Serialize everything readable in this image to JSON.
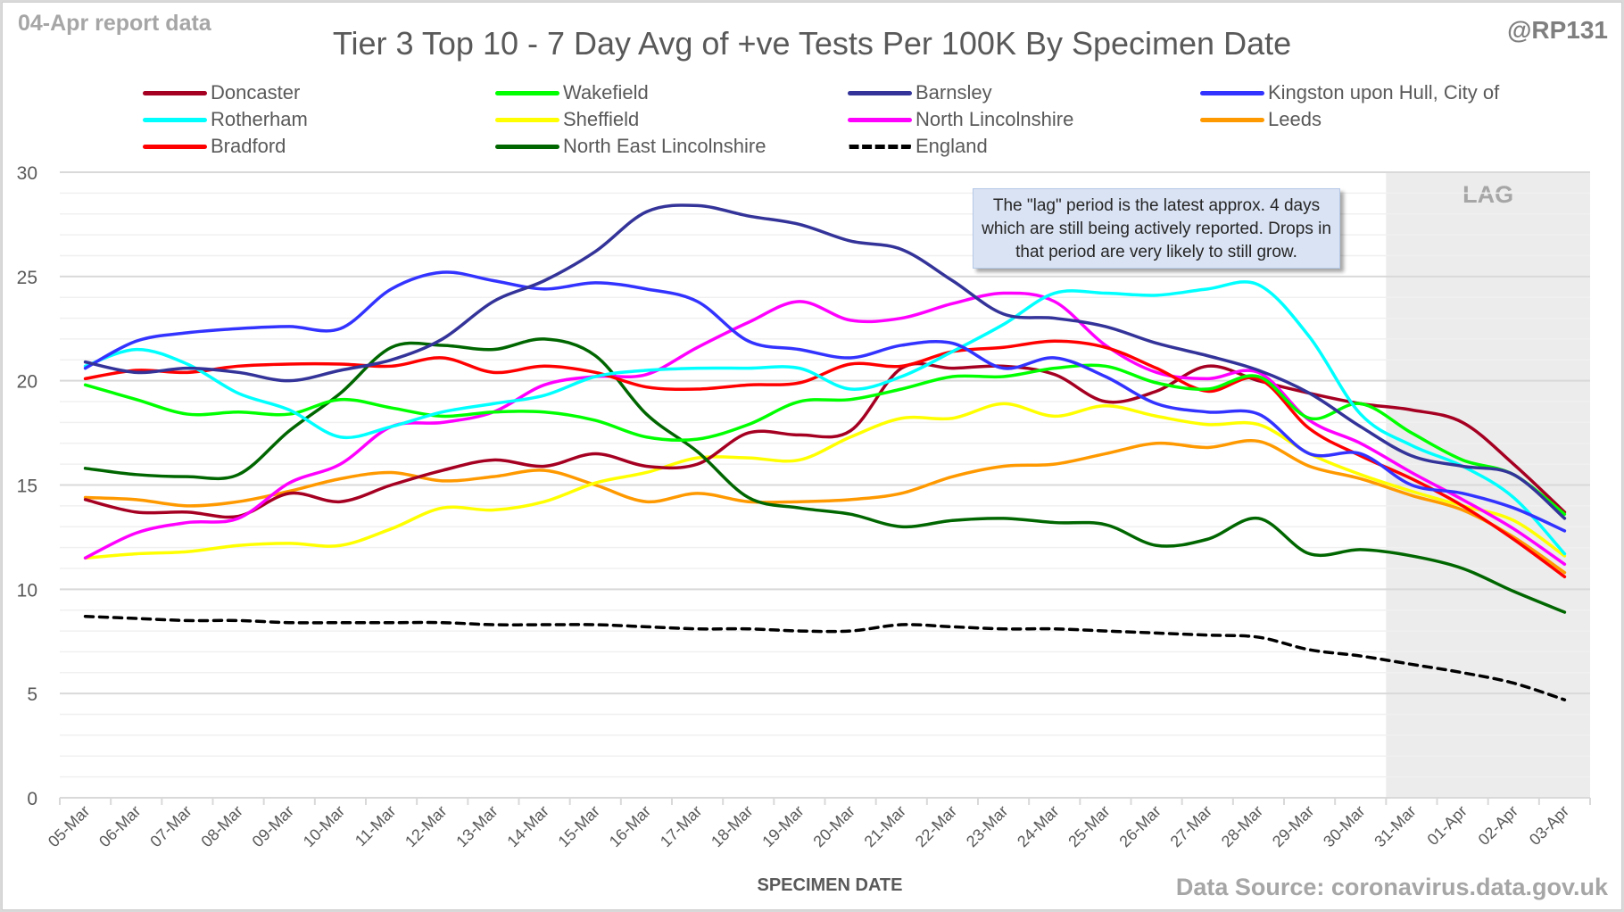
{
  "header": {
    "report_label": "04-Apr report data",
    "handle": "@RP131",
    "source": "Data Source: coronavirus.data.gov.uk"
  },
  "callout": {
    "text": "The \"lag\" period is the latest approx. 4 days which are still being actively reported.  Drops in that period are very likely to still grow."
  },
  "chart_data": {
    "type": "line",
    "title": "Tier 3 Top 10 - 7 Day Avg of +ve Tests Per 100K By Specimen Date",
    "xlabel": "SPECIMEN DATE",
    "ylabel": "",
    "ylim": [
      0,
      30
    ],
    "yticks": [
      0,
      5,
      10,
      15,
      20,
      25,
      30
    ],
    "ytick_labels": [
      "0",
      "5",
      "10",
      "15",
      "20",
      "25",
      "30"
    ],
    "grid": true,
    "minor_grid_step": 1,
    "legend_position": "top",
    "lag_region": {
      "label": "LAG",
      "start": "31-Mar",
      "end": "03-Apr"
    },
    "categories": [
      "05-Mar",
      "06-Mar",
      "07-Mar",
      "08-Mar",
      "09-Mar",
      "10-Mar",
      "11-Mar",
      "12-Mar",
      "13-Mar",
      "14-Mar",
      "15-Mar",
      "16-Mar",
      "17-Mar",
      "18-Mar",
      "19-Mar",
      "20-Mar",
      "21-Mar",
      "22-Mar",
      "23-Mar",
      "24-Mar",
      "25-Mar",
      "26-Mar",
      "27-Mar",
      "28-Mar",
      "29-Mar",
      "30-Mar",
      "31-Mar",
      "01-Apr",
      "02-Apr",
      "03-Apr"
    ],
    "series": [
      {
        "name": "Doncaster",
        "color": "#a50021",
        "dashed": false,
        "values": [
          14.3,
          13.7,
          13.7,
          13.5,
          14.6,
          14.2,
          15.0,
          15.7,
          16.2,
          15.9,
          16.5,
          15.9,
          16.0,
          17.5,
          17.4,
          17.6,
          20.6,
          20.6,
          20.7,
          20.3,
          19.0,
          19.5,
          20.7,
          20.0,
          19.4,
          18.9,
          18.6,
          18.0,
          16.0,
          13.7
        ]
      },
      {
        "name": "Wakefield",
        "color": "#00ff00",
        "dashed": false,
        "values": [
          19.8,
          19.1,
          18.4,
          18.5,
          18.4,
          19.1,
          18.7,
          18.3,
          18.5,
          18.5,
          18.1,
          17.3,
          17.2,
          17.9,
          19.0,
          19.1,
          19.6,
          20.2,
          20.2,
          20.6,
          20.7,
          19.9,
          19.6,
          20.2,
          18.2,
          18.9,
          17.5,
          16.2,
          15.5,
          13.6
        ]
      },
      {
        "name": "Barnsley",
        "color": "#333399",
        "dashed": false,
        "values": [
          20.9,
          20.4,
          20.6,
          20.4,
          20.0,
          20.5,
          21.0,
          22.0,
          23.8,
          24.8,
          26.2,
          28.1,
          28.4,
          27.9,
          27.5,
          26.7,
          26.3,
          24.8,
          23.2,
          23.0,
          22.6,
          21.8,
          21.2,
          20.5,
          19.4,
          17.8,
          16.4,
          15.9,
          15.5,
          13.4
        ]
      },
      {
        "name": "Kingston upon Hull, City of",
        "color": "#3333ff",
        "dashed": false,
        "values": [
          20.6,
          21.9,
          22.3,
          22.5,
          22.6,
          22.5,
          24.4,
          25.2,
          24.8,
          24.4,
          24.7,
          24.4,
          23.8,
          21.9,
          21.5,
          21.1,
          21.7,
          21.8,
          20.6,
          21.1,
          20.2,
          18.9,
          18.5,
          18.4,
          16.5,
          16.5,
          15.0,
          14.6,
          13.9,
          12.8
        ]
      },
      {
        "name": "Rotherham",
        "color": "#00ffff",
        "dashed": false,
        "values": [
          20.7,
          21.5,
          20.8,
          19.4,
          18.6,
          17.3,
          17.8,
          18.5,
          18.9,
          19.3,
          20.2,
          20.5,
          20.6,
          20.6,
          20.6,
          19.6,
          20.2,
          21.4,
          22.7,
          24.2,
          24.2,
          24.1,
          24.4,
          24.6,
          22.1,
          18.4,
          16.9,
          15.9,
          14.4,
          11.7
        ]
      },
      {
        "name": "Sheffield",
        "color": "#ffff00",
        "dashed": false,
        "values": [
          11.5,
          11.7,
          11.8,
          12.1,
          12.2,
          12.1,
          12.9,
          13.9,
          13.8,
          14.2,
          15.1,
          15.6,
          16.3,
          16.3,
          16.2,
          17.3,
          18.2,
          18.2,
          18.9,
          18.3,
          18.8,
          18.3,
          17.9,
          17.9,
          16.5,
          15.5,
          14.7,
          14.0,
          13.3,
          11.6
        ]
      },
      {
        "name": "North Lincolnshire",
        "color": "#ff00ff",
        "dashed": false,
        "values": [
          11.5,
          12.7,
          13.2,
          13.4,
          15.1,
          16.0,
          17.8,
          18.0,
          18.5,
          19.8,
          20.2,
          20.3,
          21.6,
          22.8,
          23.8,
          22.9,
          23.0,
          23.7,
          24.2,
          23.8,
          21.7,
          20.4,
          20.1,
          20.4,
          18.1,
          17.0,
          15.6,
          14.3,
          12.9,
          11.2
        ]
      },
      {
        "name": "Leeds",
        "color": "#ff9900",
        "dashed": false,
        "values": [
          14.4,
          14.3,
          14.0,
          14.2,
          14.7,
          15.3,
          15.6,
          15.2,
          15.4,
          15.7,
          15.0,
          14.2,
          14.6,
          14.2,
          14.2,
          14.3,
          14.6,
          15.4,
          15.9,
          16.0,
          16.5,
          17.0,
          16.8,
          17.1,
          15.9,
          15.3,
          14.5,
          13.8,
          12.5,
          10.8
        ]
      },
      {
        "name": "Bradford",
        "color": "#ff0000",
        "dashed": false,
        "values": [
          20.1,
          20.5,
          20.4,
          20.7,
          20.8,
          20.8,
          20.7,
          21.1,
          20.4,
          20.7,
          20.4,
          19.7,
          19.6,
          19.8,
          19.9,
          20.8,
          20.7,
          21.4,
          21.6,
          21.9,
          21.6,
          20.6,
          19.5,
          20.1,
          17.7,
          16.4,
          15.3,
          14.0,
          12.4,
          10.6
        ]
      },
      {
        "name": "North East Lincolnshire",
        "color": "#006600",
        "dashed": false,
        "values": [
          15.8,
          15.5,
          15.4,
          15.5,
          17.6,
          19.4,
          21.6,
          21.7,
          21.5,
          22.0,
          21.2,
          18.4,
          16.6,
          14.4,
          13.9,
          13.6,
          13.0,
          13.3,
          13.4,
          13.2,
          13.1,
          12.1,
          12.4,
          13.4,
          11.7,
          11.9,
          11.6,
          11.0,
          9.9,
          8.9
        ]
      },
      {
        "name": "England",
        "color": "#000000",
        "dashed": true,
        "values": [
          8.7,
          8.6,
          8.5,
          8.5,
          8.4,
          8.4,
          8.4,
          8.4,
          8.3,
          8.3,
          8.3,
          8.2,
          8.1,
          8.1,
          8.0,
          8.0,
          8.3,
          8.2,
          8.1,
          8.1,
          8.0,
          7.9,
          7.8,
          7.7,
          7.1,
          6.8,
          6.4,
          6.0,
          5.5,
          4.7
        ]
      }
    ]
  }
}
